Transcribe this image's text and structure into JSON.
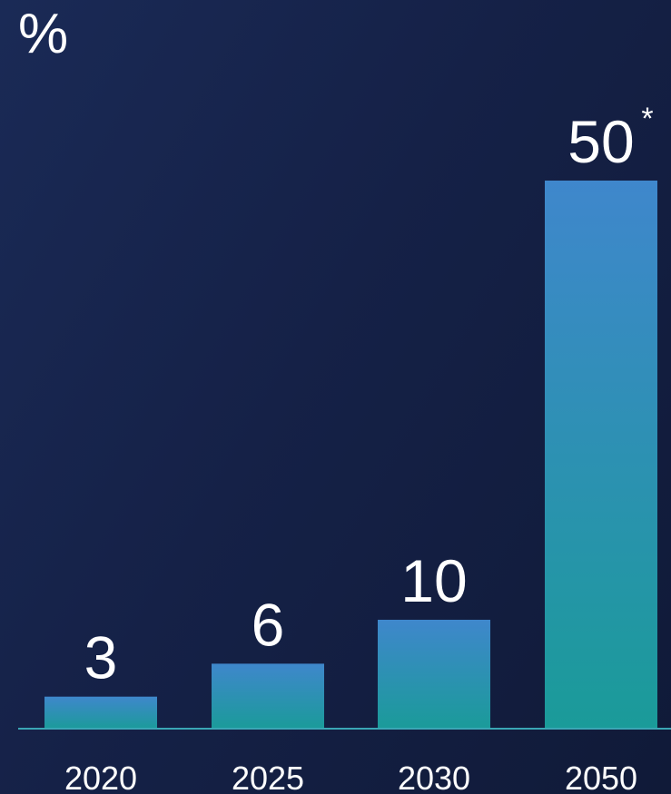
{
  "chart_data": {
    "type": "bar",
    "unit_label": "%",
    "categories": [
      "2020",
      "2025",
      "2030",
      "2050"
    ],
    "values": [
      3,
      6,
      10,
      50
    ],
    "value_labels": [
      "3",
      "6",
      "10",
      "50"
    ],
    "footnote_marks": [
      "",
      "",
      "",
      "*"
    ],
    "ylim": [
      0,
      50
    ],
    "grid": false,
    "legend": "none",
    "colors": {
      "bar_top": "#3f87cc",
      "bar_bottom": "#1a9b99",
      "baseline": "#3aa6b5",
      "text": "#ffffff"
    }
  }
}
